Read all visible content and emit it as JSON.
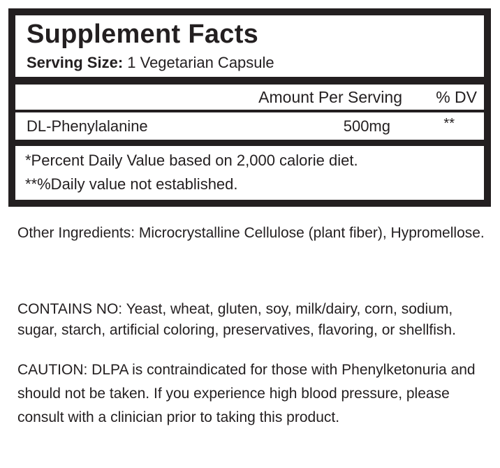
{
  "facts": {
    "title": "Supplement Facts",
    "serving_label": "Serving Size:",
    "serving_value": " 1 Vegetarian Capsule",
    "header_amount": "Amount Per Serving",
    "header_dv": "% DV",
    "ingredients": [
      {
        "name": "DL-Phenylalanine",
        "amount": "500mg",
        "dv": "**"
      }
    ],
    "footnotes": [
      "*Percent Daily Value based on 2,000 calorie diet.",
      "**%Daily value not established."
    ]
  },
  "paragraphs": [
    "Other Ingredients: Microcrystalline Cellulose (plant fiber), Hypromellose.",
    "CONTAINS NO: Yeast, wheat, gluten, soy, milk/dairy, corn, sodium, sugar, starch, artificial coloring, preservatives, flavoring, or shellfish.",
    "CAUTION: DLPA is contraindicated for those with Phenylketonuria and should not be taken.  If you experience high blood pressure, please consult with a clinician prior to taking this product."
  ]
}
